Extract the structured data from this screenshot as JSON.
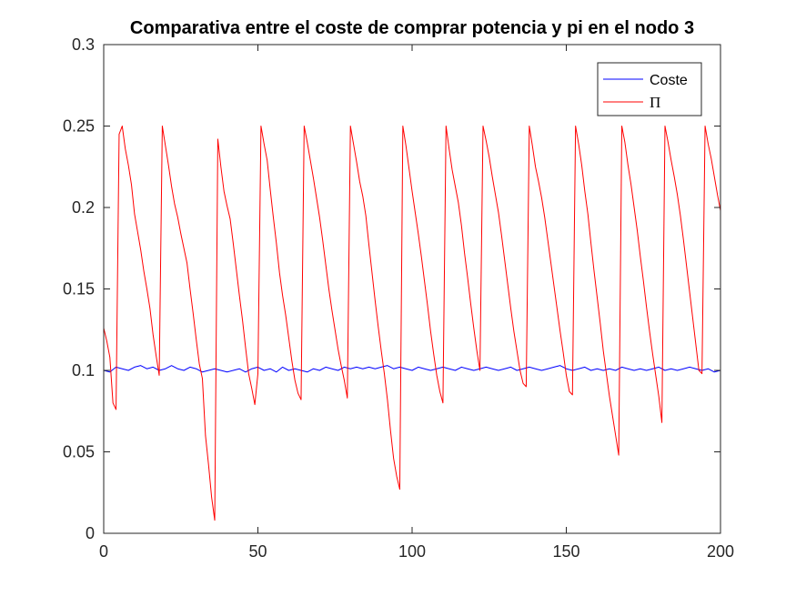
{
  "chart_data": {
    "type": "line",
    "title": "Comparativa entre el coste de comprar potencia y pi en el nodo 3",
    "xlabel": "",
    "ylabel": "",
    "xlim": [
      0,
      200
    ],
    "ylim": [
      0,
      0.3
    ],
    "xticks": [
      0,
      50,
      100,
      150,
      200
    ],
    "xtick_labels": [
      "0",
      "50",
      "100",
      "150",
      "200"
    ],
    "yticks": [
      0,
      0.05,
      0.1,
      0.15,
      0.2,
      0.25,
      0.3
    ],
    "ytick_labels": [
      "0",
      "0.05",
      "0.1",
      "0.15",
      "0.2",
      "0.25",
      "0.3"
    ],
    "grid": false,
    "legend_position": "top-right",
    "series": [
      {
        "name": "Coste",
        "color": "#0000ff",
        "x": [
          0,
          2,
          4,
          6,
          8,
          10,
          12,
          14,
          16,
          18,
          20,
          22,
          24,
          26,
          28,
          30,
          32,
          34,
          36,
          38,
          40,
          42,
          44,
          46,
          48,
          50,
          52,
          54,
          56,
          58,
          60,
          62,
          64,
          66,
          68,
          70,
          72,
          74,
          76,
          78,
          80,
          82,
          84,
          86,
          88,
          90,
          92,
          94,
          96,
          98,
          100,
          102,
          104,
          106,
          108,
          110,
          112,
          114,
          116,
          118,
          120,
          122,
          124,
          126,
          128,
          130,
          132,
          134,
          136,
          138,
          140,
          142,
          144,
          146,
          148,
          150,
          152,
          154,
          156,
          158,
          160,
          162,
          164,
          166,
          168,
          170,
          172,
          174,
          176,
          178,
          180,
          182,
          184,
          186,
          188,
          190,
          192,
          194,
          196,
          198,
          200
        ],
        "y": [
          0.1,
          0.099,
          0.102,
          0.101,
          0.1,
          0.102,
          0.103,
          0.101,
          0.102,
          0.1,
          0.101,
          0.103,
          0.101,
          0.1,
          0.102,
          0.101,
          0.099,
          0.1,
          0.101,
          0.1,
          0.099,
          0.1,
          0.101,
          0.099,
          0.101,
          0.102,
          0.1,
          0.101,
          0.099,
          0.102,
          0.1,
          0.101,
          0.1,
          0.099,
          0.101,
          0.1,
          0.102,
          0.101,
          0.1,
          0.102,
          0.101,
          0.102,
          0.101,
          0.102,
          0.101,
          0.102,
          0.103,
          0.101,
          0.102,
          0.101,
          0.1,
          0.102,
          0.101,
          0.1,
          0.101,
          0.102,
          0.101,
          0.1,
          0.102,
          0.101,
          0.1,
          0.101,
          0.102,
          0.101,
          0.1,
          0.101,
          0.102,
          0.1,
          0.101,
          0.102,
          0.101,
          0.1,
          0.101,
          0.102,
          0.103,
          0.101,
          0.1,
          0.101,
          0.102,
          0.1,
          0.101,
          0.1,
          0.101,
          0.1,
          0.102,
          0.101,
          0.1,
          0.101,
          0.1,
          0.101,
          0.102,
          0.1,
          0.101,
          0.1,
          0.101,
          0.102,
          0.101,
          0.1,
          0.101,
          0.099,
          0.1
        ]
      },
      {
        "name": "Π",
        "color": "#ff0000",
        "x": [
          0,
          1,
          2,
          3,
          4,
          5,
          6,
          7,
          8,
          9,
          10,
          11,
          12,
          13,
          14,
          15,
          16,
          17,
          18,
          19,
          20,
          21,
          22,
          23,
          24,
          25,
          26,
          27,
          28,
          29,
          30,
          31,
          32,
          33,
          34,
          35,
          36,
          37,
          38,
          39,
          40,
          41,
          42,
          43,
          44,
          45,
          46,
          47,
          48,
          49,
          50,
          51,
          52,
          53,
          54,
          55,
          56,
          57,
          58,
          59,
          60,
          61,
          62,
          63,
          64,
          65,
          66,
          67,
          68,
          69,
          70,
          71,
          72,
          73,
          74,
          75,
          76,
          77,
          78,
          79,
          80,
          81,
          82,
          83,
          84,
          85,
          86,
          87,
          88,
          89,
          90,
          91,
          92,
          93,
          94,
          95,
          96,
          97,
          98,
          99,
          100,
          101,
          102,
          103,
          104,
          105,
          106,
          107,
          108,
          109,
          110,
          111,
          112,
          113,
          114,
          115,
          116,
          117,
          118,
          119,
          120,
          121,
          122,
          123,
          124,
          125,
          126,
          127,
          128,
          129,
          130,
          131,
          132,
          133,
          134,
          135,
          136,
          137,
          138,
          139,
          140,
          141,
          142,
          143,
          144,
          145,
          146,
          147,
          148,
          149,
          150,
          151,
          152,
          153,
          154,
          155,
          156,
          157,
          158,
          159,
          160,
          161,
          162,
          163,
          164,
          165,
          166,
          167,
          168,
          169,
          170,
          171,
          172,
          173,
          174,
          175,
          176,
          177,
          178,
          179,
          180,
          181,
          182,
          183,
          184,
          185,
          186,
          187,
          188,
          189,
          190,
          191,
          192,
          193,
          194,
          195,
          196,
          197,
          198,
          199,
          200
        ],
        "y": [
          0.126,
          0.118,
          0.108,
          0.08,
          0.076,
          0.245,
          0.25,
          0.236,
          0.226,
          0.214,
          0.196,
          0.185,
          0.174,
          0.161,
          0.15,
          0.138,
          0.122,
          0.109,
          0.097,
          0.25,
          0.238,
          0.226,
          0.213,
          0.202,
          0.194,
          0.184,
          0.175,
          0.166,
          0.15,
          0.135,
          0.119,
          0.104,
          0.095,
          0.06,
          0.042,
          0.022,
          0.008,
          0.242,
          0.225,
          0.21,
          0.201,
          0.193,
          0.178,
          0.162,
          0.146,
          0.131,
          0.114,
          0.098,
          0.089,
          0.079,
          0.098,
          0.25,
          0.239,
          0.229,
          0.211,
          0.194,
          0.178,
          0.16,
          0.146,
          0.134,
          0.12,
          0.106,
          0.094,
          0.086,
          0.082,
          0.25,
          0.24,
          0.229,
          0.218,
          0.206,
          0.194,
          0.18,
          0.165,
          0.15,
          0.137,
          0.125,
          0.113,
          0.103,
          0.094,
          0.083,
          0.25,
          0.239,
          0.228,
          0.216,
          0.207,
          0.195,
          0.177,
          0.16,
          0.143,
          0.127,
          0.112,
          0.098,
          0.082,
          0.063,
          0.046,
          0.035,
          0.027,
          0.25,
          0.238,
          0.224,
          0.21,
          0.197,
          0.184,
          0.17,
          0.155,
          0.14,
          0.124,
          0.11,
          0.097,
          0.087,
          0.08,
          0.25,
          0.236,
          0.223,
          0.213,
          0.203,
          0.189,
          0.172,
          0.157,
          0.141,
          0.126,
          0.112,
          0.1,
          0.25,
          0.241,
          0.231,
          0.219,
          0.208,
          0.197,
          0.183,
          0.168,
          0.153,
          0.138,
          0.124,
          0.112,
          0.1,
          0.092,
          0.09,
          0.25,
          0.238,
          0.225,
          0.216,
          0.206,
          0.194,
          0.18,
          0.166,
          0.152,
          0.138,
          0.124,
          0.111,
          0.097,
          0.087,
          0.085,
          0.25,
          0.239,
          0.226,
          0.21,
          0.196,
          0.178,
          0.161,
          0.145,
          0.129,
          0.112,
          0.098,
          0.084,
          0.072,
          0.06,
          0.048,
          0.25,
          0.24,
          0.226,
          0.214,
          0.2,
          0.186,
          0.17,
          0.155,
          0.139,
          0.124,
          0.11,
          0.097,
          0.084,
          0.068,
          0.25,
          0.24,
          0.229,
          0.219,
          0.208,
          0.195,
          0.18,
          0.164,
          0.148,
          0.132,
          0.116,
          0.1,
          0.098,
          0.25,
          0.239,
          0.23,
          0.219,
          0.208,
          0.198
        ]
      }
    ]
  }
}
